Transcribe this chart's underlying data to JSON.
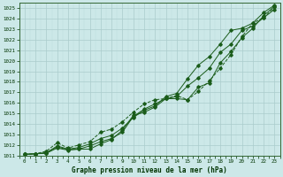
{
  "title": "Graphe pression niveau de la mer (hPa)",
  "bg_color": "#cce8e8",
  "grid_major_color": "#aacccc",
  "grid_minor_color": "#bbdddd",
  "line_color": "#1a5c1a",
  "xlim": [
    -0.5,
    23.5
  ],
  "ylim": [
    1011,
    1025.5
  ],
  "xticks": [
    0,
    1,
    2,
    3,
    4,
    5,
    6,
    7,
    8,
    9,
    10,
    11,
    12,
    13,
    14,
    15,
    16,
    17,
    18,
    19,
    20,
    21,
    22,
    23
  ],
  "yticks": [
    1011,
    1012,
    1013,
    1014,
    1015,
    1016,
    1017,
    1018,
    1019,
    1020,
    1021,
    1022,
    1023,
    1024,
    1025
  ],
  "series": [
    [
      1011.1,
      1011.15,
      1011.2,
      1011.7,
      1011.5,
      1011.6,
      1011.6,
      1012.1,
      1012.5,
      1013.4,
      1014.8,
      1015.1,
      1015.6,
      1016.4,
      1016.4,
      1016.3,
      1017.5,
      1017.9,
      1019.8,
      1020.9,
      1022.2,
      1023.1,
      1024.3,
      1025.2
    ],
    [
      1011.1,
      1011.15,
      1011.25,
      1011.8,
      1011.55,
      1011.6,
      1011.9,
      1012.3,
      1012.6,
      1013.2,
      1014.7,
      1015.4,
      1015.9,
      1016.4,
      1016.6,
      1017.6,
      1018.4,
      1019.3,
      1020.8,
      1021.6,
      1022.9,
      1023.3,
      1024.1,
      1024.9
    ],
    [
      1011.1,
      1011.15,
      1011.25,
      1011.9,
      1011.6,
      1011.75,
      1012.1,
      1012.6,
      1012.9,
      1013.6,
      1014.6,
      1015.3,
      1015.7,
      1016.6,
      1016.9,
      1018.3,
      1019.6,
      1020.4,
      1021.6,
      1022.9,
      1023.1,
      1023.6,
      1024.6,
      1025.3
    ],
    [
      1011.1,
      1011.15,
      1011.4,
      1012.2,
      1011.7,
      1012.0,
      1012.3,
      1013.2,
      1013.5,
      1014.2,
      1015.1,
      1015.9,
      1016.3,
      1016.4,
      1016.7,
      1016.3,
      1017.1,
      1018.1,
      1019.3,
      1020.6,
      1022.3,
      1023.6,
      1024.1,
      1025.1
    ]
  ]
}
